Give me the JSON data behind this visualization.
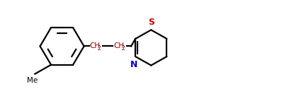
{
  "background": "#ffffff",
  "line_color": "#000000",
  "S_color": "#cc0000",
  "N_color": "#0000cc",
  "CH2_color": "#8b0000",
  "line_width": 1.6,
  "fig_width": 4.15,
  "fig_height": 1.43,
  "dpi": 100,
  "xlim": [
    0,
    10
  ],
  "ylim": [
    0,
    3.5
  ]
}
